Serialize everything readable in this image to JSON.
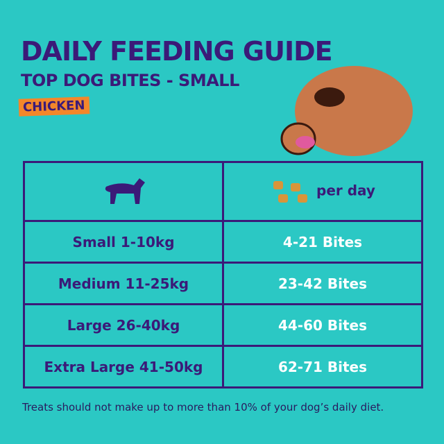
{
  "header": {
    "title": "DAILY FEEDING GUIDE",
    "subtitle": "TOP DOG BITES - SMALL",
    "flavor": "CHICKEN"
  },
  "table": {
    "header": [
      null,
      "per day"
    ],
    "rows": [
      [
        "Small 1-10kg",
        "4-21 Bites"
      ],
      [
        "Medium 11-25kg",
        "23-42 Bites"
      ],
      [
        "Large 26-40kg",
        "44-60 Bites"
      ],
      [
        "Extra Large 41-50kg",
        "62-71 Bites"
      ]
    ]
  },
  "footnote": "Treats should not make up to more than 10% of your dog’s daily diet."
}
